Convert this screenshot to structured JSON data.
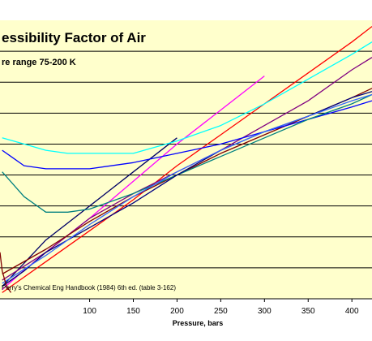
{
  "chart_data": {
    "type": "line",
    "title": "essibility Factor of Air",
    "subtitle": "re range 75-200  K",
    "xlabel": "Pressure, bars",
    "ylabel": "",
    "source_note": "Perry's Chemical Eng Handbook (1984) 6th ed.  (table 3-162)",
    "xlim": [
      -2.5,
      423
    ],
    "ylim": [
      0,
      9
    ],
    "x_ticks": [
      100,
      150,
      200,
      250,
      300,
      350,
      400
    ],
    "x_tick_labels": [
      "100",
      "150",
      "200",
      "250",
      "300",
      "350",
      "400"
    ],
    "gridlines_y": [
      1,
      2,
      3,
      4,
      5,
      6,
      7,
      8
    ],
    "grid": true,
    "plot_background": "#ffffcc",
    "grid_color": "#000000",
    "series": [
      {
        "color": "#000066",
        "x": [
          0,
          20,
          50,
          100,
          150,
          200
        ],
        "y": [
          0.4,
          1.0,
          1.9,
          3.0,
          4.1,
          5.2
        ]
      },
      {
        "color": "#ff00ff",
        "x": [
          0,
          20,
          50,
          100,
          150,
          200,
          250,
          300
        ],
        "y": [
          0.3,
          0.8,
          1.5,
          2.6,
          3.8,
          5.0,
          6.1,
          7.2
        ]
      },
      {
        "color": "#ff0000",
        "x": [
          0,
          20,
          50,
          100,
          150,
          200,
          250,
          300,
          350,
          400,
          423
        ],
        "y": [
          0.2,
          0.6,
          1.2,
          2.2,
          3.2,
          4.3,
          5.3,
          6.3,
          7.3,
          8.3,
          8.8
        ]
      },
      {
        "color": "#00ffff",
        "x": [
          0,
          25,
          50,
          75,
          100,
          150,
          200,
          250,
          300,
          350,
          400,
          423
        ],
        "y": [
          5.2,
          5.0,
          4.8,
          4.7,
          4.7,
          4.7,
          5.1,
          5.6,
          6.3,
          7.1,
          7.9,
          8.3
        ]
      },
      {
        "color": "#800080",
        "x": [
          0,
          50,
          100,
          150,
          200,
          250,
          300,
          350,
          400,
          423
        ],
        "y": [
          0.6,
          1.5,
          2.6,
          3.4,
          4.1,
          4.8,
          5.6,
          6.4,
          7.4,
          7.8
        ]
      },
      {
        "color": "#800000",
        "x": [
          0,
          50,
          100,
          150,
          200,
          250,
          300,
          350,
          400,
          423
        ],
        "y": [
          0.8,
          1.6,
          2.5,
          3.3,
          4.0,
          4.7,
          5.3,
          5.9,
          6.5,
          6.8
        ]
      },
      {
        "color": "#0000ff",
        "x": [
          0,
          10,
          25,
          50,
          75,
          100,
          150,
          200,
          250,
          300,
          350,
          400,
          423
        ],
        "y": [
          4.8,
          4.6,
          4.3,
          4.2,
          4.2,
          4.2,
          4.4,
          4.7,
          5.0,
          5.4,
          5.8,
          6.2,
          6.4
        ]
      },
      {
        "color": "#008080",
        "x": [
          0,
          25,
          50,
          75,
          100,
          150,
          200,
          250,
          300,
          350,
          400,
          423
        ],
        "y": [
          4.1,
          3.3,
          2.8,
          2.8,
          2.9,
          3.4,
          4.0,
          4.6,
          5.2,
          5.8,
          6.3,
          6.6
        ]
      },
      {
        "color": "#000080",
        "x": [
          0,
          25,
          50,
          100,
          150,
          200,
          250,
          300,
          350,
          400,
          423
        ],
        "y": [
          0.4,
          0.9,
          1.5,
          2.3,
          3.1,
          4.0,
          4.8,
          5.4,
          5.9,
          6.5,
          6.7
        ]
      },
      {
        "color": "#3366ff",
        "x": [
          0,
          50,
          100,
          150,
          200,
          250,
          300,
          350,
          400,
          423
        ],
        "y": [
          0.5,
          1.4,
          2.4,
          3.3,
          4.1,
          4.8,
          5.4,
          5.9,
          6.4,
          6.6
        ]
      },
      {
        "color": "#800000",
        "x": [
          -2.5,
          0,
          5,
          10
        ],
        "y": [
          1.5,
          0.9,
          0.4,
          0.2
        ]
      }
    ]
  }
}
